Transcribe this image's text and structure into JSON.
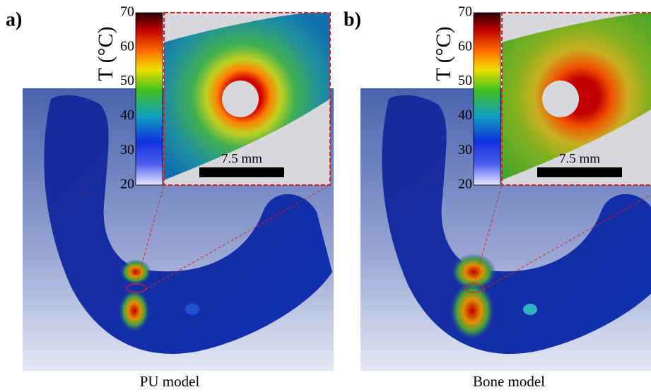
{
  "panels": [
    {
      "label": "a)",
      "colorbar": {
        "title": "T (°C)",
        "ticks": [
          20,
          30,
          40,
          50,
          60,
          70
        ]
      },
      "scale_bar": "7.5 mm",
      "caption": "PU model"
    },
    {
      "label": "b)",
      "colorbar": {
        "title": "T (°C)",
        "ticks": [
          20,
          30,
          40,
          50,
          60,
          70
        ]
      },
      "scale_bar": "7.5 mm",
      "caption": "Bone model"
    }
  ]
}
